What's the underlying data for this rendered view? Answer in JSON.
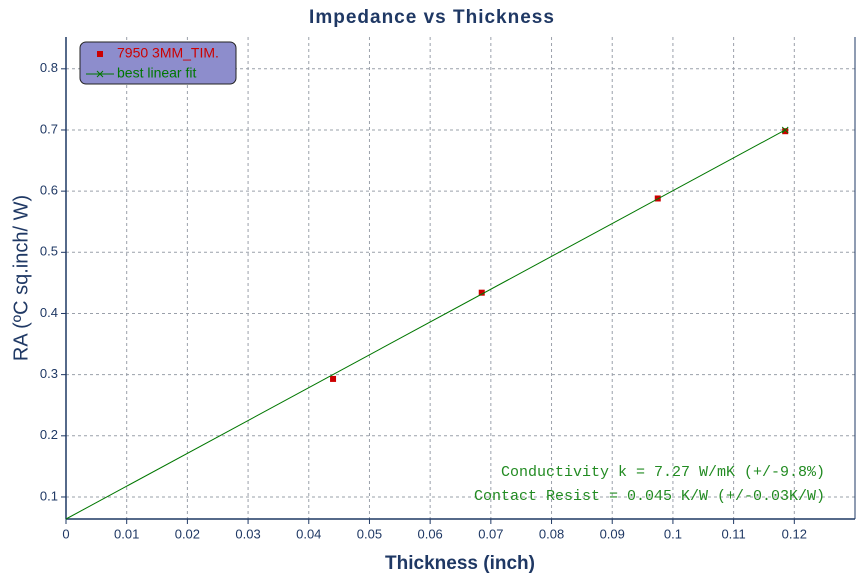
{
  "chart_data": {
    "type": "scatter",
    "title": "Impedance vs Thickness",
    "x_label": "Thickness (inch)",
    "y_label": "RA (ºC sq.inch/ W)",
    "series": [
      {
        "name": "7950 3MM_TIM.",
        "type": "scatter",
        "color": "#cc0000",
        "x": [
          0.044,
          0.0685,
          0.0975,
          0.1185
        ],
        "values": [
          0.293,
          0.434,
          0.588,
          0.698
        ]
      },
      {
        "name": "best linear fit",
        "type": "line",
        "color": "#007700",
        "x": [
          0,
          0.1185
        ],
        "values": [
          0.064,
          0.7
        ]
      }
    ],
    "annotations": [
      "Conductivity k = 7.27 W/mK (+/-9.8%)",
      "Contact Resist = 0.045 K/W (+/-0.03K/W)"
    ],
    "xlim": [
      0,
      0.13
    ],
    "ylim": [
      0.064,
      0.852
    ],
    "xticks": [
      0,
      0.01,
      0.02,
      0.03,
      0.04,
      0.05,
      0.06,
      0.07,
      0.08,
      0.09,
      0.1,
      0.11,
      0.12
    ],
    "yticks": [
      0.1,
      0.2,
      0.3,
      0.4,
      0.5,
      0.6,
      0.7,
      0.8
    ],
    "grid": true,
    "legend": "top-left"
  }
}
